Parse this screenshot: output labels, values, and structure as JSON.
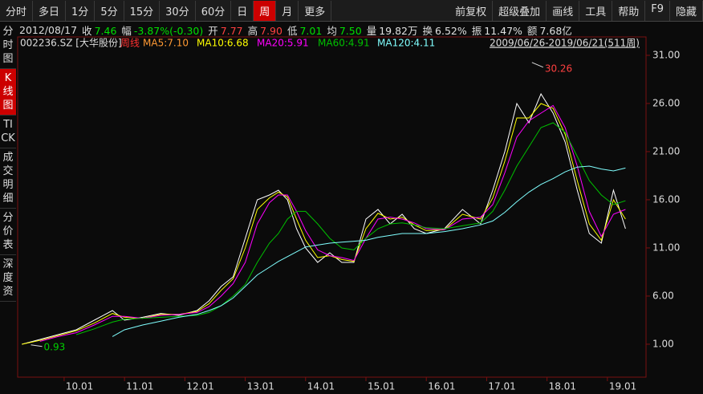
{
  "toolbar": {
    "left": [
      "分时",
      "多日",
      "1分",
      "5分",
      "15分",
      "30分",
      "60分",
      "日",
      "周",
      "月",
      "更多"
    ],
    "active_index": 8,
    "right": [
      "前复权",
      "超级叠加",
      "画线",
      "工具",
      "帮助",
      "F9",
      "隐藏"
    ]
  },
  "quote": {
    "date": "2012/08/17",
    "items": [
      {
        "label": "收",
        "value": "7.46",
        "color": "#00e000"
      },
      {
        "label": "幅",
        "value": "-3.87%(-0.30)",
        "color": "#00e000"
      },
      {
        "label": "开",
        "value": "7.77",
        "color": "#ff4040"
      },
      {
        "label": "高",
        "value": "7.90",
        "color": "#ff4040"
      },
      {
        "label": "低",
        "value": "7.01",
        "color": "#00e000"
      },
      {
        "label": "均",
        "value": "7.50",
        "color": "#00e000"
      },
      {
        "label": "量",
        "value": "19.82万",
        "color": "#e0e0e0"
      },
      {
        "label": "换",
        "value": "6.52%",
        "color": "#e0e0e0"
      },
      {
        "label": "振",
        "value": "11.47%",
        "color": "#e0e0e0"
      },
      {
        "label": "额",
        "value": "7.68亿",
        "color": "#e0e0e0"
      }
    ]
  },
  "sidebar": {
    "tabs": [
      "分时图",
      "K线图",
      "TICK",
      "成交明细",
      "分价表",
      "深度资"
    ],
    "active_index": 1
  },
  "chart_data": {
    "type": "line",
    "symbol": "002236.SZ [大华股份]",
    "period": "周线",
    "range": "2009/06/26-2019/06/21(511周)",
    "x": [
      2009.3,
      2009.6,
      2009.9,
      2010.2,
      2010.5,
      2010.8,
      2011.0,
      2011.3,
      2011.6,
      2011.9,
      2012.2,
      2012.4,
      2012.6,
      2012.8,
      2013.0,
      2013.2,
      2013.4,
      2013.55,
      2013.7,
      2013.85,
      2014.0,
      2014.2,
      2014.4,
      2014.6,
      2014.8,
      2015.0,
      2015.2,
      2015.4,
      2015.6,
      2015.8,
      2016.0,
      2016.3,
      2016.6,
      2016.9,
      2017.1,
      2017.3,
      2017.5,
      2017.7,
      2017.9,
      2018.1,
      2018.3,
      2018.5,
      2018.7,
      2018.9,
      2019.1,
      2019.3
    ],
    "series": [
      {
        "name": "MA5:7.10",
        "color": "#ffffff",
        "values": [
          1.0,
          1.5,
          2.0,
          2.5,
          3.5,
          4.5,
          3.5,
          3.8,
          4.2,
          4.0,
          4.5,
          5.5,
          7.0,
          8.0,
          12,
          16,
          16.5,
          17,
          16,
          13,
          11,
          9.5,
          10.5,
          9.5,
          9.5,
          14,
          15,
          13.5,
          14.5,
          13,
          12.5,
          13,
          15,
          13.5,
          17,
          21,
          26,
          24,
          27,
          25,
          22,
          17,
          12.5,
          11.5,
          17,
          13
        ]
      },
      {
        "name": "MA10:6.68",
        "color": "#ffff00",
        "values": [
          1.0,
          1.4,
          1.9,
          2.4,
          3.2,
          4.2,
          3.8,
          3.7,
          4.1,
          4.1,
          4.4,
          5.2,
          6.6,
          7.8,
          11,
          15,
          16.2,
          16.8,
          16.3,
          14,
          11.8,
          10,
          10.2,
          9.8,
          9.6,
          13,
          14.6,
          14,
          14.2,
          13.4,
          12.8,
          12.9,
          14.5,
          14,
          16.2,
          20,
          24.5,
          24.5,
          26,
          25.5,
          22.8,
          18,
          13.5,
          11.8,
          16,
          14
        ]
      },
      {
        "name": "MA20:5.91",
        "color": "#ff00ff",
        "values": [
          null,
          1.3,
          1.8,
          2.2,
          3.0,
          3.9,
          3.9,
          3.7,
          4.0,
          4.1,
          4.3,
          4.9,
          6.0,
          7.3,
          9.5,
          13.5,
          15.7,
          16.5,
          16.5,
          14.8,
          12.8,
          10.8,
          10.2,
          10,
          9.7,
          12,
          14,
          14.2,
          14,
          13.6,
          13,
          12.9,
          14,
          14.2,
          15.5,
          18.8,
          22.5,
          24.2,
          25,
          25.8,
          23.5,
          19.5,
          14.8,
          12.2,
          14.5,
          15
        ]
      },
      {
        "name": "MA60:4.91",
        "color": "#00c000",
        "values": [
          null,
          null,
          null,
          2.0,
          2.6,
          3.3,
          3.6,
          3.7,
          3.8,
          3.9,
          4.0,
          4.3,
          5.0,
          6.0,
          7.2,
          9.5,
          11.5,
          12.5,
          14,
          14.8,
          14.8,
          13.5,
          12,
          11,
          10.8,
          12,
          13,
          13.5,
          13.6,
          13.4,
          13.1,
          13,
          13.3,
          13.6,
          14.8,
          17,
          19.5,
          21.5,
          23.5,
          24,
          23,
          20.5,
          18,
          16.5,
          15.5,
          15.9
        ]
      },
      {
        "name": "MA120:4.11",
        "color": "#80ffff",
        "values": [
          null,
          null,
          null,
          null,
          null,
          1.8,
          2.5,
          3.0,
          3.4,
          3.8,
          4.1,
          4.5,
          5.0,
          5.8,
          7.0,
          8.2,
          9.0,
          9.6,
          10.1,
          10.6,
          11.1,
          11.3,
          11.5,
          11.6,
          11.7,
          11.8,
          12.1,
          12.3,
          12.5,
          12.5,
          12.5,
          12.7,
          13.0,
          13.4,
          13.8,
          14.7,
          15.8,
          16.8,
          17.6,
          18.2,
          18.9,
          19.4,
          19.5,
          19.2,
          19.0,
          19.3
        ]
      }
    ],
    "annotations": [
      {
        "text": "30.26",
        "x": 2017.75,
        "y": 30.26
      },
      {
        "text": "0.93",
        "x": 2009.45,
        "y": 0.93
      }
    ],
    "xlim": [
      2009.23,
      2019.64
    ],
    "xticks": [
      {
        "value": 2010,
        "label": "10.01"
      },
      {
        "value": 2011,
        "label": "11.01"
      },
      {
        "value": 2012,
        "label": "12.01"
      },
      {
        "value": 2013,
        "label": "13.01"
      },
      {
        "value": 2014,
        "label": "14.01"
      },
      {
        "value": 2015,
        "label": "15.01"
      },
      {
        "value": 2016,
        "label": "16.01"
      },
      {
        "value": 2017,
        "label": "17.01"
      },
      {
        "value": 2018,
        "label": "18.01"
      },
      {
        "value": 2019,
        "label": "19.01"
      }
    ],
    "ylim": [
      -2.42,
      31.58
    ],
    "yticks": [
      {
        "value": 31,
        "label": "31.00"
      },
      {
        "value": 26,
        "label": "26.00"
      },
      {
        "value": 21,
        "label": "21.00"
      },
      {
        "value": 16,
        "label": "16.00"
      },
      {
        "value": 11,
        "label": "11.00"
      },
      {
        "value": 6,
        "label": "6.00"
      },
      {
        "value": 1,
        "label": "1.00"
      }
    ],
    "grid": false
  }
}
